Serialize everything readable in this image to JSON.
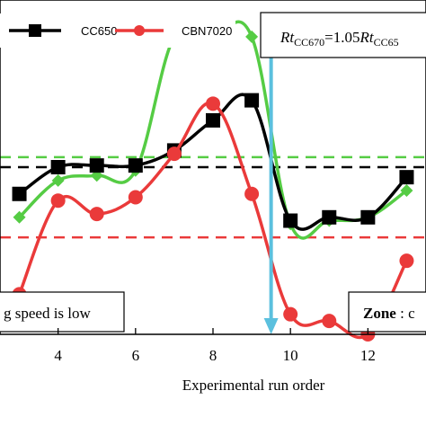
{
  "chart_data": {
    "type": "line",
    "xlabel": "Experimental run order",
    "ylabel": "",
    "xlim": [
      2.5,
      13.5
    ],
    "ylim": [
      0,
      10
    ],
    "x_ticks": [
      4,
      6,
      8,
      10,
      12
    ],
    "x_tick_labels": [
      "4",
      "6",
      "8",
      "10",
      "12"
    ],
    "grid": false,
    "legend_position": "top-left",
    "series": [
      {
        "name": "CC650",
        "color": "#000000",
        "marker": "square",
        "x": [
          3,
          4,
          5,
          6,
          7,
          8,
          9,
          10,
          11,
          12,
          13
        ],
        "y": [
          4.2,
          5.0,
          5.05,
          5.05,
          5.5,
          6.4,
          7.0,
          3.4,
          3.5,
          3.5,
          4.7
        ]
      },
      {
        "name": "CBN7020",
        "color": "#ea3a3a",
        "marker": "circle",
        "x": [
          3,
          4,
          5,
          6,
          7,
          8,
          9,
          10,
          11,
          12,
          13
        ],
        "y": [
          1.2,
          4.0,
          3.6,
          4.1,
          5.4,
          6.9,
          4.2,
          0.6,
          0.4,
          0.0,
          2.2
        ]
      },
      {
        "color": "#55cc44",
        "marker": "diamond",
        "x": [
          3,
          4,
          5,
          6,
          7,
          8,
          9,
          10,
          11,
          12,
          13
        ],
        "y": [
          3.5,
          4.6,
          4.75,
          4.9,
          8.9,
          8.9,
          8.9,
          3.3,
          3.4,
          3.5,
          4.3
        ]
      }
    ],
    "reference_lines": [
      {
        "color": "#55cc44",
        "style": "dashed",
        "y": 5.3
      },
      {
        "color": "#000000",
        "style": "dashed",
        "y": 5.0
      },
      {
        "color": "#ea3a3a",
        "style": "dashed",
        "y": 2.9
      }
    ],
    "vertical_line": {
      "x": 9.5,
      "color": "#5bc0de"
    },
    "annotations": {
      "top_box_italic_1": "Rt",
      "top_box_sub_1": "CC670",
      "top_box_mid": "=1.05",
      "top_box_italic_2": "Rt",
      "top_box_sub_2": "CC65",
      "left_box": "g speed is low",
      "right_box_bold": "Zone",
      "right_box_rest": " : c"
    }
  }
}
